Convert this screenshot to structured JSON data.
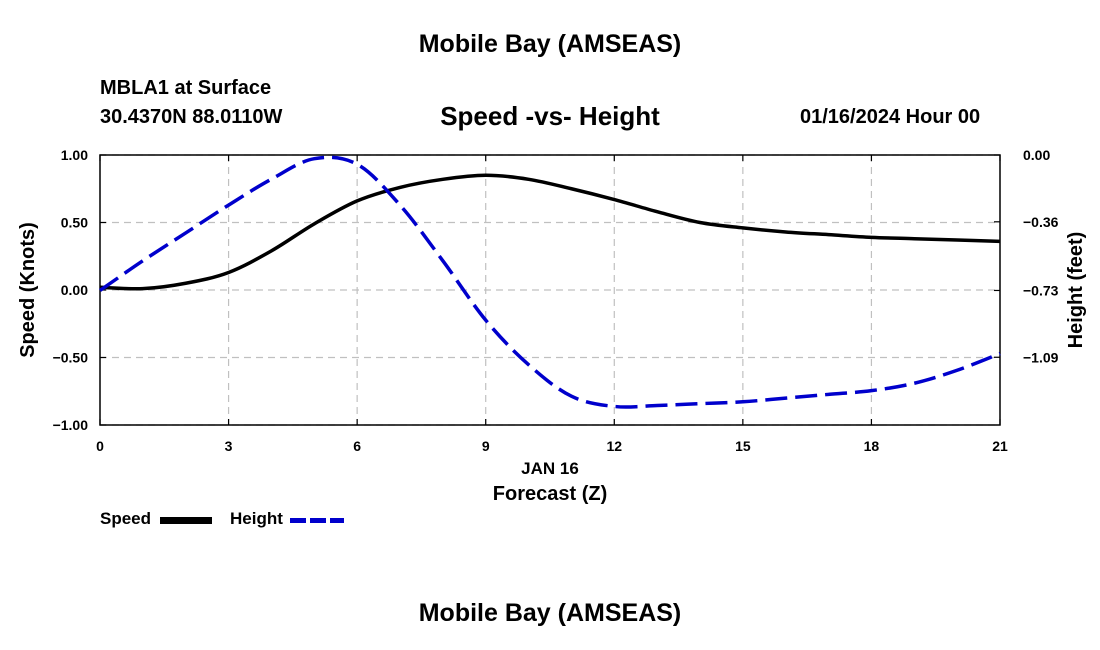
{
  "header": {
    "title": "Mobile Bay (AMSEAS)",
    "station": "MBLA1 at Surface",
    "coords": "30.4370N  88.0110W",
    "subtitle": "Speed -vs- Height",
    "datetime": "01/16/2024 Hour 00",
    "footer_title": "Mobile Bay (AMSEAS)"
  },
  "legend": {
    "speed_label": "Speed",
    "height_label": "Height"
  },
  "colors": {
    "speed": "#000000",
    "height": "#0000cc",
    "grid": "#c0c0c0"
  },
  "chart_data": {
    "type": "line",
    "title": "Speed -vs- Height",
    "xlabel": "Forecast (Z)",
    "xlabel_date": "JAN 16",
    "ylabel_left": "Speed (Knots)",
    "ylabel_right": "Height (feet)",
    "xlim": [
      0,
      21
    ],
    "ylim_left": [
      -1.0,
      1.0
    ],
    "ylim_right": [
      -1.455,
      0.0
    ],
    "x_ticks": [
      0,
      3,
      6,
      9,
      12,
      15,
      18,
      21
    ],
    "x_tick_labels": [
      "0",
      "3",
      "6",
      "9",
      "12",
      "15",
      "18",
      "21"
    ],
    "y_left_ticks": [
      1.0,
      0.5,
      0.0,
      -0.5,
      -1.0
    ],
    "y_left_tick_labels": [
      "1.00",
      "0.50",
      "0.00",
      "−0.50",
      "−1.00"
    ],
    "y_right_ticks": [
      0.0,
      -0.36,
      -0.73,
      -1.09
    ],
    "y_right_tick_labels": [
      "0.00",
      "−0.36",
      "−0.73",
      "−1.09"
    ],
    "grid": true,
    "legend_position": "bottom-left",
    "series": [
      {
        "name": "Speed",
        "axis": "left",
        "style": "solid",
        "x": [
          0,
          1,
          2,
          3,
          4,
          5,
          6,
          7,
          8,
          9,
          10,
          11,
          12,
          13,
          14,
          15,
          16,
          17,
          18,
          19,
          20,
          21
        ],
        "values": [
          0.02,
          0.01,
          0.05,
          0.13,
          0.29,
          0.49,
          0.66,
          0.76,
          0.82,
          0.85,
          0.82,
          0.75,
          0.67,
          0.58,
          0.5,
          0.46,
          0.43,
          0.41,
          0.39,
          0.38,
          0.37,
          0.36
        ]
      },
      {
        "name": "Height",
        "axis": "right",
        "style": "dashed",
        "x": [
          0,
          1,
          2,
          3,
          4,
          5,
          6,
          7,
          8,
          9,
          10,
          11,
          12,
          13,
          14,
          15,
          16,
          17,
          18,
          19,
          20,
          21
        ],
        "values": [
          -0.73,
          -0.57,
          -0.42,
          -0.27,
          -0.13,
          -0.02,
          -0.05,
          -0.27,
          -0.57,
          -0.89,
          -1.13,
          -1.3,
          -1.355,
          -1.35,
          -1.34,
          -1.33,
          -1.31,
          -1.29,
          -1.27,
          -1.23,
          -1.16,
          -1.07
        ]
      }
    ]
  }
}
